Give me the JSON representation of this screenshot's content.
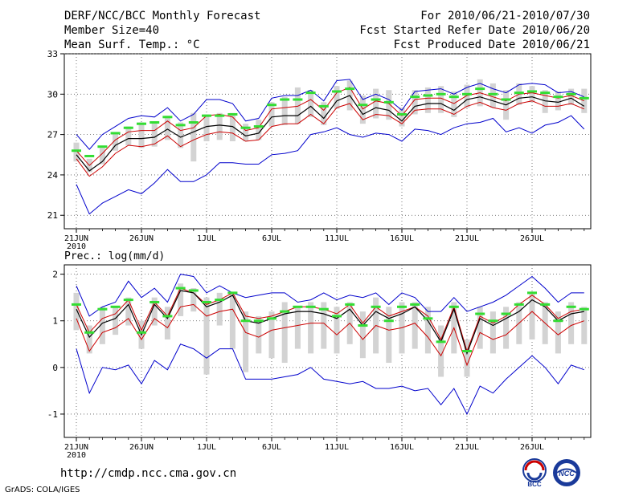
{
  "header": {
    "title": "DERF/NCC/BCC Monthly Forecast",
    "member_size": "Member Size=40",
    "variable": "Mean Surf. Temp.: °C",
    "period": "For 2010/06/21-2010/07/30",
    "refer_date": "Fcst Started Refer Date 2010/06/20",
    "produced_date": "Fcst Produced Date 2010/06/21"
  },
  "footer": {
    "url": "http://cmdp.ncc.cma.gov.cn",
    "credit": "GrADS: COLA/IGES",
    "logo_bcc_text": "BCC",
    "logo_ncc_text": "NCC"
  },
  "chart_data": [
    {
      "type": "line",
      "title": "Mean Surf. Temp.: °C",
      "ylim": [
        20,
        33
      ],
      "yticks": [
        "21",
        "24",
        "27",
        "30",
        "33"
      ],
      "xticks": [
        "21JUN",
        "26JUN",
        "1JUL",
        "6JUL",
        "11JUL",
        "16JUL",
        "21JUL",
        "26JUL"
      ],
      "xtick_days": [
        0,
        5,
        10,
        15,
        20,
        25,
        30,
        35
      ],
      "year_label": "2010",
      "grid": "dotted",
      "series": [
        {
          "name": "max",
          "color": "#0000cc",
          "values": [
            27.0,
            25.9,
            27.0,
            27.6,
            28.2,
            28.4,
            28.3,
            29.0,
            28.0,
            28.5,
            29.6,
            29.6,
            29.3,
            28.0,
            28.2,
            29.7,
            29.9,
            29.9,
            30.3,
            29.5,
            31.0,
            31.1,
            29.6,
            30.0,
            29.6,
            28.8,
            30.2,
            30.3,
            30.4,
            30.0,
            30.5,
            30.8,
            30.4,
            30.1,
            30.7,
            30.8,
            30.7,
            30.1,
            30.2,
            29.8
          ]
        },
        {
          "name": "p75",
          "color": "#cc0000",
          "values": [
            25.8,
            24.7,
            25.6,
            26.6,
            27.2,
            27.3,
            27.3,
            28.0,
            27.3,
            27.5,
            28.4,
            28.5,
            28.3,
            27.3,
            27.5,
            28.9,
            29.0,
            29.1,
            29.6,
            28.8,
            30.1,
            30.5,
            28.9,
            29.5,
            29.3,
            28.4,
            29.6,
            29.7,
            29.7,
            29.3,
            29.9,
            30.1,
            29.8,
            29.5,
            30.0,
            30.1,
            29.9,
            29.7,
            29.9,
            29.5
          ]
        },
        {
          "name": "mean",
          "color": "#000000",
          "values": [
            25.5,
            24.3,
            25.0,
            26.2,
            26.7,
            26.7,
            26.8,
            27.4,
            26.8,
            27.2,
            27.6,
            27.7,
            27.6,
            26.9,
            27.1,
            28.3,
            28.4,
            28.4,
            29.1,
            28.2,
            29.5,
            29.9,
            28.5,
            29.0,
            28.8,
            28.0,
            29.1,
            29.3,
            29.3,
            28.8,
            29.6,
            29.8,
            29.5,
            29.2,
            29.7,
            29.8,
            29.5,
            29.4,
            29.7,
            29.1
          ]
        },
        {
          "name": "p25",
          "color": "#cc0000",
          "values": [
            25.2,
            23.9,
            24.6,
            25.6,
            26.2,
            26.1,
            26.3,
            26.9,
            26.1,
            26.6,
            27.0,
            27.2,
            27.1,
            26.5,
            26.6,
            27.6,
            27.8,
            27.8,
            28.5,
            27.8,
            29.0,
            29.3,
            28.1,
            28.5,
            28.4,
            27.8,
            28.8,
            28.9,
            28.9,
            28.5,
            29.1,
            29.4,
            29.0,
            28.8,
            29.3,
            29.5,
            29.1,
            29.1,
            29.3,
            28.9
          ]
        },
        {
          "name": "min",
          "color": "#0000cc",
          "values": [
            23.3,
            21.1,
            21.9,
            22.4,
            22.9,
            22.6,
            23.4,
            24.4,
            23.5,
            23.5,
            24.0,
            24.9,
            24.9,
            24.8,
            24.8,
            25.5,
            25.6,
            25.8,
            27.0,
            27.2,
            27.5,
            27.0,
            26.8,
            27.1,
            27.0,
            26.5,
            27.4,
            27.3,
            27.0,
            27.5,
            27.8,
            27.9,
            28.2,
            27.2,
            27.5,
            27.1,
            27.7,
            27.9,
            28.4,
            27.4
          ]
        },
        {
          "name": "obs_bar",
          "color": "#33dd33",
          "values": [
            25.8,
            25.4,
            26.1,
            27.1,
            27.5,
            27.8,
            27.9,
            28.3,
            27.7,
            27.9,
            28.4,
            28.4,
            28.5,
            27.5,
            27.6,
            29.2,
            29.6,
            29.6,
            30.1,
            29.1,
            30.2,
            30.4,
            29.2,
            29.6,
            29.4,
            28.5,
            29.8,
            29.9,
            30.0,
            29.8,
            30.0,
            30.4,
            30.0,
            29.6,
            30.1,
            30.2,
            30.1,
            29.8,
            30.0,
            29.7
          ]
        }
      ],
      "spread_boxes": [
        [
          25.0,
          26.4
        ],
        [
          24.2,
          25.2
        ],
        [
          24.8,
          26.0
        ],
        [
          25.8,
          27.1
        ],
        [
          26.2,
          27.6
        ],
        [
          26.0,
          27.9
        ],
        [
          26.1,
          27.9
        ],
        [
          26.6,
          28.4
        ],
        [
          26.0,
          27.9
        ],
        [
          25.0,
          28.6
        ],
        [
          26.5,
          28.5
        ],
        [
          26.6,
          28.6
        ],
        [
          26.5,
          28.6
        ],
        [
          26.5,
          27.8
        ],
        [
          26.6,
          28.1
        ],
        [
          27.6,
          29.4
        ],
        [
          27.7,
          29.8
        ],
        [
          27.8,
          30.5
        ],
        [
          28.3,
          30.3
        ],
        [
          27.7,
          29.4
        ],
        [
          28.9,
          30.6
        ],
        [
          28.8,
          31.0
        ],
        [
          27.8,
          29.9
        ],
        [
          28.2,
          30.4
        ],
        [
          28.1,
          30.3
        ],
        [
          27.6,
          29.0
        ],
        [
          28.5,
          30.3
        ],
        [
          28.6,
          30.5
        ],
        [
          28.6,
          30.6
        ],
        [
          28.3,
          30.2
        ],
        [
          29.0,
          30.7
        ],
        [
          29.1,
          31.1
        ],
        [
          29.0,
          30.8
        ],
        [
          28.1,
          30.3
        ],
        [
          29.2,
          30.8
        ],
        [
          29.4,
          30.6
        ],
        [
          28.6,
          30.3
        ],
        [
          28.8,
          30.2
        ],
        [
          29.2,
          30.4
        ],
        [
          28.6,
          30.4
        ]
      ]
    },
    {
      "type": "line",
      "title": "Prec.: log(mm/d)",
      "ylim": [
        -1.5,
        2.2
      ],
      "yticks": [
        "-1",
        "0",
        "1",
        "2"
      ],
      "xticks": [
        "21JUN",
        "26JUN",
        "1JUL",
        "6JUL",
        "11JUL",
        "16JUL",
        "21JUL",
        "26JUL"
      ],
      "xtick_days": [
        0,
        5,
        10,
        15,
        20,
        25,
        30,
        35
      ],
      "year_label": "2010",
      "grid": "dotted",
      "series": [
        {
          "name": "max",
          "color": "#0000cc",
          "values": [
            1.75,
            1.1,
            1.3,
            1.4,
            1.85,
            1.5,
            1.7,
            1.4,
            2.0,
            1.95,
            1.6,
            1.75,
            1.6,
            1.5,
            1.55,
            1.6,
            1.6,
            1.4,
            1.45,
            1.6,
            1.45,
            1.55,
            1.5,
            1.6,
            1.35,
            1.6,
            1.5,
            1.2,
            1.2,
            1.5,
            1.2,
            1.3,
            1.4,
            1.55,
            1.75,
            1.95,
            1.7,
            1.4,
            1.6,
            1.6
          ]
        },
        {
          "name": "p75",
          "color": "#cc0000",
          "values": [
            1.35,
            0.75,
            1.05,
            1.15,
            1.45,
            0.8,
            1.4,
            1.1,
            1.7,
            1.6,
            1.35,
            1.45,
            1.6,
            1.1,
            1.05,
            1.1,
            1.2,
            1.3,
            1.3,
            1.25,
            1.15,
            1.35,
            0.95,
            1.3,
            1.1,
            1.2,
            1.3,
            1.1,
            0.6,
            1.3,
            0.35,
            1.1,
            0.95,
            1.1,
            1.35,
            1.55,
            1.35,
            1.05,
            1.2,
            1.25
          ]
        },
        {
          "name": "mean",
          "color": "#000000",
          "values": [
            1.25,
            0.65,
            0.95,
            1.05,
            1.35,
            0.7,
            1.35,
            1.05,
            1.65,
            1.6,
            1.3,
            1.4,
            1.55,
            1.0,
            0.95,
            1.05,
            1.15,
            1.2,
            1.2,
            1.15,
            1.05,
            1.25,
            0.9,
            1.2,
            1.05,
            1.15,
            1.3,
            1.0,
            0.55,
            1.25,
            0.3,
            1.05,
            0.9,
            1.05,
            1.2,
            1.45,
            1.3,
            1.0,
            1.15,
            1.2
          ]
        },
        {
          "name": "p25",
          "color": "#cc0000",
          "values": [
            1.05,
            0.35,
            0.75,
            0.85,
            1.05,
            0.6,
            1.05,
            0.85,
            1.3,
            1.35,
            1.1,
            1.2,
            1.25,
            0.75,
            0.65,
            0.8,
            0.85,
            0.9,
            0.95,
            0.95,
            0.7,
            0.95,
            0.6,
            0.9,
            0.8,
            0.85,
            0.95,
            0.65,
            0.25,
            0.85,
            0.05,
            0.75,
            0.6,
            0.7,
            0.95,
            1.2,
            0.95,
            0.7,
            0.9,
            1.0
          ]
        },
        {
          "name": "min",
          "color": "#0000cc",
          "values": [
            0.4,
            -0.55,
            0.0,
            -0.05,
            0.05,
            -0.35,
            0.15,
            -0.05,
            0.5,
            0.4,
            0.2,
            0.4,
            0.4,
            -0.25,
            -0.25,
            -0.25,
            -0.2,
            -0.15,
            0.0,
            -0.25,
            -0.3,
            -0.35,
            -0.3,
            -0.45,
            -0.45,
            -0.4,
            -0.5,
            -0.45,
            -0.8,
            -0.45,
            -1.0,
            -0.4,
            -0.55,
            -0.25,
            0.0,
            0.25,
            0.0,
            -0.35,
            0.05,
            -0.05
          ]
        },
        {
          "name": "obs_bar",
          "color": "#33dd33",
          "values": [
            1.35,
            0.75,
            1.25,
            1.3,
            1.45,
            0.75,
            1.4,
            1.1,
            1.7,
            1.65,
            1.4,
            1.45,
            1.6,
            1.0,
            1.0,
            1.05,
            1.2,
            1.3,
            1.3,
            1.25,
            1.1,
            1.35,
            0.9,
            1.3,
            1.0,
            1.3,
            1.35,
            1.05,
            0.55,
            1.3,
            0.35,
            1.15,
            1.0,
            1.15,
            1.35,
            1.6,
            1.35,
            1.0,
            1.3,
            1.25
          ]
        }
      ],
      "spread_boxes": [
        [
          0.8,
          1.6
        ],
        [
          0.3,
          0.9
        ],
        [
          0.5,
          1.3
        ],
        [
          0.7,
          1.3
        ],
        [
          0.9,
          1.5
        ],
        [
          0.4,
          1.0
        ],
        [
          0.9,
          1.5
        ],
        [
          0.6,
          1.3
        ],
        [
          1.1,
          1.8
        ],
        [
          1.2,
          1.7
        ],
        [
          -0.15,
          1.5
        ],
        [
          0.9,
          1.6
        ],
        [
          0.4,
          1.6
        ],
        [
          -0.1,
          1.2
        ],
        [
          0.3,
          1.1
        ],
        [
          0.2,
          1.2
        ],
        [
          0.1,
          1.4
        ],
        [
          0.4,
          1.3
        ],
        [
          0.3,
          1.4
        ],
        [
          0.4,
          1.4
        ],
        [
          0.3,
          1.3
        ],
        [
          0.5,
          1.4
        ],
        [
          0.2,
          1.2
        ],
        [
          0.3,
          1.5
        ],
        [
          0.1,
          1.3
        ],
        [
          0.3,
          1.4
        ],
        [
          0.4,
          1.4
        ],
        [
          0.3,
          1.3
        ],
        [
          -0.2,
          0.9
        ],
        [
          0.3,
          1.4
        ],
        [
          -0.2,
          0.6
        ],
        [
          0.4,
          1.3
        ],
        [
          0.3,
          1.2
        ],
        [
          0.4,
          1.3
        ],
        [
          0.5,
          1.4
        ],
        [
          0.6,
          1.6
        ],
        [
          0.5,
          1.4
        ],
        [
          0.3,
          1.2
        ],
        [
          0.5,
          1.4
        ],
        [
          0.5,
          1.3
        ]
      ]
    }
  ]
}
